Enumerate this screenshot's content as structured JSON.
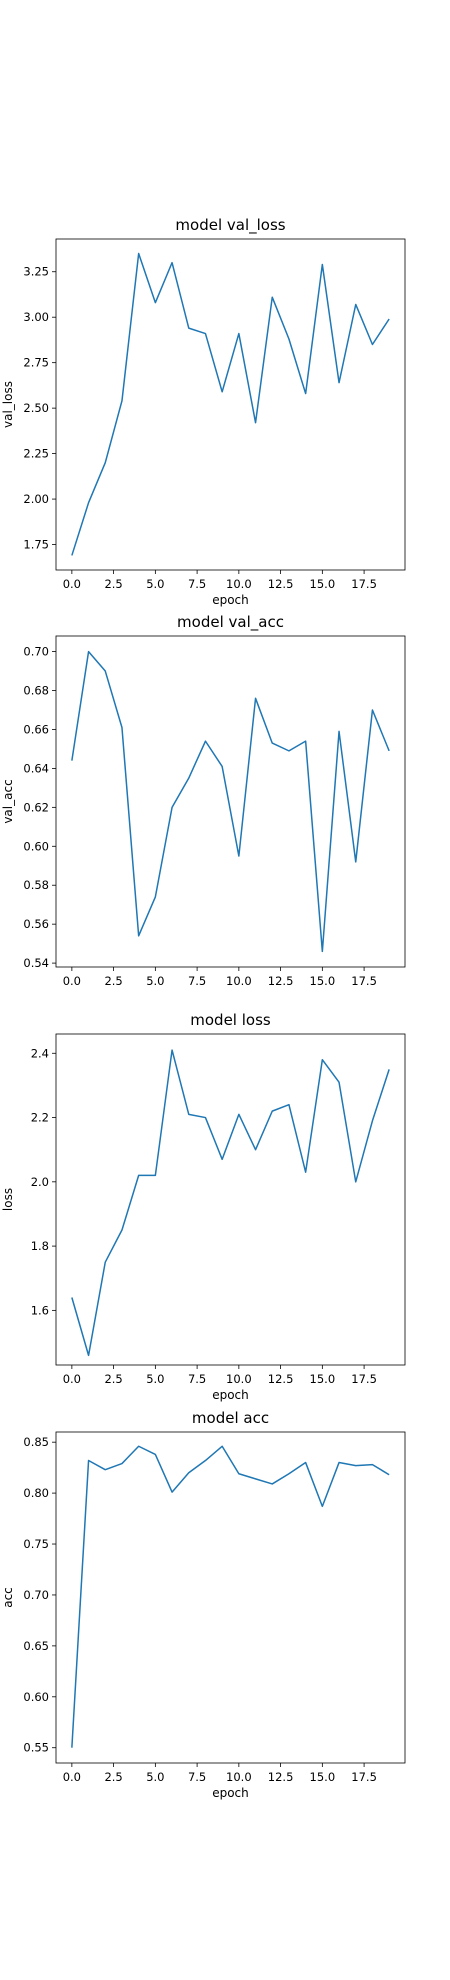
{
  "line_color": "#1f77b4",
  "chart_data": [
    {
      "type": "line",
      "title": "model val_loss",
      "xlabel": "epoch",
      "ylabel": "val_loss",
      "x": [
        0,
        1,
        2,
        3,
        4,
        5,
        6,
        7,
        8,
        9,
        10,
        11,
        12,
        13,
        14,
        15,
        16,
        17,
        18,
        19
      ],
      "series": [
        {
          "values": [
            1.69,
            1.98,
            2.2,
            2.54,
            3.35,
            3.08,
            3.3,
            2.94,
            2.91,
            2.59,
            2.91,
            2.42,
            3.11,
            2.88,
            2.58,
            3.29,
            2.64,
            3.07,
            2.85,
            2.99
          ]
        }
      ],
      "xlim": [
        -0.95,
        19.95
      ],
      "ylim": [
        1.61,
        3.43
      ],
      "xticks": [
        0,
        2.5,
        5,
        7.5,
        10,
        12.5,
        15,
        17.5
      ],
      "xtick_labels": [
        "0.0",
        "2.5",
        "5.0",
        "7.5",
        "10.0",
        "12.5",
        "15.0",
        "17.5"
      ],
      "yticks": [
        1.75,
        2.0,
        2.25,
        2.5,
        2.75,
        3.0,
        3.25
      ],
      "ytick_labels": [
        "1.75",
        "2.00",
        "2.25",
        "2.50",
        "2.75",
        "3.00",
        "3.25"
      ],
      "grid": false
    },
    {
      "type": "line",
      "title": "model val_acc",
      "xlabel": "",
      "ylabel": "val_acc",
      "x": [
        0,
        1,
        2,
        3,
        4,
        5,
        6,
        7,
        8,
        9,
        10,
        11,
        12,
        13,
        14,
        15,
        16,
        17,
        18,
        19
      ],
      "series": [
        {
          "values": [
            0.644,
            0.7,
            0.69,
            0.661,
            0.554,
            0.574,
            0.62,
            0.635,
            0.654,
            0.641,
            0.595,
            0.676,
            0.653,
            0.649,
            0.654,
            0.546,
            0.659,
            0.592,
            0.67,
            0.649
          ]
        }
      ],
      "xlim": [
        -0.95,
        19.95
      ],
      "ylim": [
        0.538,
        0.708
      ],
      "xticks": [
        0,
        2.5,
        5,
        7.5,
        10,
        12.5,
        15,
        17.5
      ],
      "xtick_labels": [
        "0.0",
        "2.5",
        "5.0",
        "7.5",
        "10.0",
        "12.5",
        "15.0",
        "17.5"
      ],
      "yticks": [
        0.54,
        0.56,
        0.58,
        0.6,
        0.62,
        0.64,
        0.66,
        0.68,
        0.7
      ],
      "ytick_labels": [
        "0.54",
        "0.56",
        "0.58",
        "0.60",
        "0.62",
        "0.64",
        "0.66",
        "0.68",
        "0.70"
      ],
      "grid": false
    },
    {
      "type": "line",
      "title": "model loss",
      "xlabel": "epoch",
      "ylabel": "loss",
      "x": [
        0,
        1,
        2,
        3,
        4,
        5,
        6,
        7,
        8,
        9,
        10,
        11,
        12,
        13,
        14,
        15,
        16,
        17,
        18,
        19
      ],
      "series": [
        {
          "values": [
            1.64,
            1.46,
            1.75,
            1.85,
            2.02,
            2.02,
            2.41,
            2.21,
            2.2,
            2.07,
            2.21,
            2.1,
            2.22,
            2.24,
            2.03,
            2.38,
            2.31,
            2.0,
            2.19,
            2.35
          ]
        }
      ],
      "xlim": [
        -0.95,
        19.95
      ],
      "ylim": [
        1.43,
        2.46
      ],
      "xticks": [
        0,
        2.5,
        5,
        7.5,
        10,
        12.5,
        15,
        17.5
      ],
      "xtick_labels": [
        "0.0",
        "2.5",
        "5.0",
        "7.5",
        "10.0",
        "12.5",
        "15.0",
        "17.5"
      ],
      "yticks": [
        1.6,
        1.8,
        2.0,
        2.2,
        2.4
      ],
      "ytick_labels": [
        "1.6",
        "1.8",
        "2.0",
        "2.2",
        "2.4"
      ],
      "grid": false
    },
    {
      "type": "line",
      "title": "model acc",
      "xlabel": "epoch",
      "ylabel": "acc",
      "x": [
        0,
        1,
        2,
        3,
        4,
        5,
        6,
        7,
        8,
        9,
        10,
        11,
        12,
        13,
        14,
        15,
        16,
        17,
        18,
        19
      ],
      "series": [
        {
          "values": [
            0.55,
            0.832,
            0.823,
            0.829,
            0.846,
            0.838,
            0.801,
            0.82,
            0.832,
            0.846,
            0.819,
            0.814,
            0.809,
            0.819,
            0.83,
            0.787,
            0.83,
            0.827,
            0.828,
            0.818
          ]
        }
      ],
      "xlim": [
        -0.95,
        19.95
      ],
      "ylim": [
        0.535,
        0.86
      ],
      "xticks": [
        0,
        2.5,
        5,
        7.5,
        10,
        12.5,
        15,
        17.5
      ],
      "xtick_labels": [
        "0.0",
        "2.5",
        "5.0",
        "7.5",
        "10.0",
        "12.5",
        "15.0",
        "17.5"
      ],
      "yticks": [
        0.55,
        0.6,
        0.65,
        0.7,
        0.75,
        0.8,
        0.85
      ],
      "ytick_labels": [
        "0.55",
        "0.60",
        "0.65",
        "0.70",
        "0.75",
        "0.80",
        "0.85"
      ],
      "grid": false
    }
  ]
}
